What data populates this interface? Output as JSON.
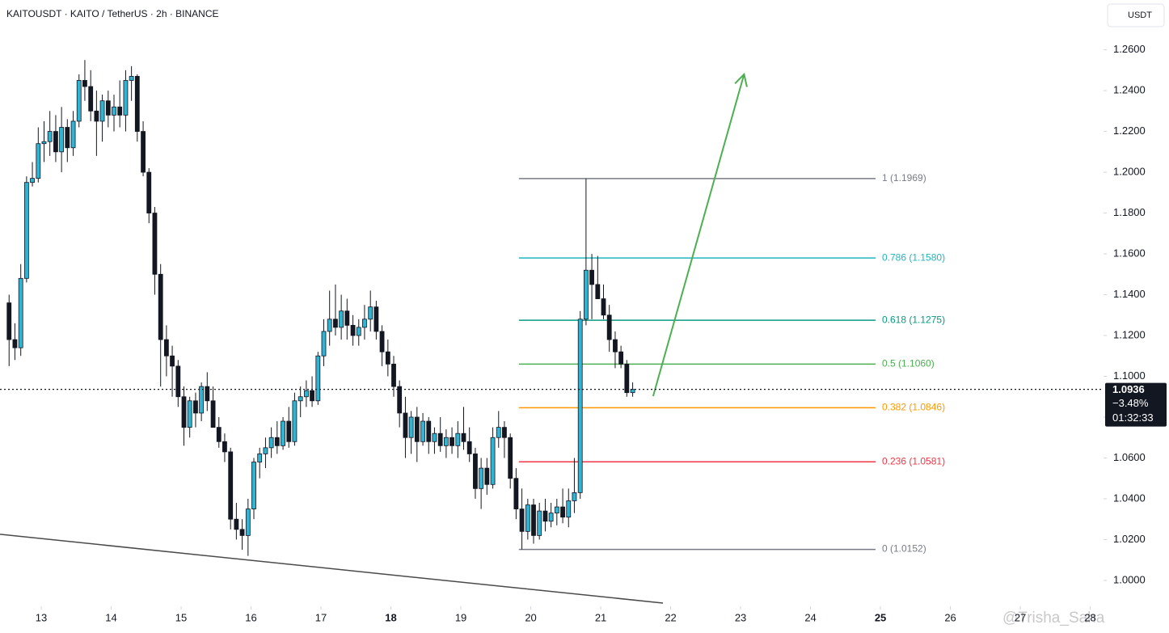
{
  "header": {
    "title": "KAITOUSDT · KAITO / TetherUS · 2h · BINANCE",
    "currency": "USDT"
  },
  "watermark": "@Trisha_Saha",
  "chart_data": {
    "type": "candlestick",
    "xlim": [
      12.41,
      28.19
    ],
    "ylim": [
      0.9873,
      1.2844
    ],
    "xticks": [
      13,
      14,
      15,
      16,
      17,
      18,
      19,
      20,
      21,
      22,
      23,
      24,
      25,
      26,
      27,
      28
    ],
    "bold_xticks": [
      18,
      25
    ],
    "yticks": [
      {
        "value": 1.0,
        "label": "1.0000"
      },
      {
        "value": 1.02,
        "label": "1.0200"
      },
      {
        "value": 1.04,
        "label": "1.0400"
      },
      {
        "value": 1.06,
        "label": "1.0600"
      },
      {
        "value": 1.08,
        "label": "1.0800"
      },
      {
        "value": 1.1,
        "label": "1.1000"
      },
      {
        "value": 1.12,
        "label": "1.1200"
      },
      {
        "value": 1.14,
        "label": "1.1400"
      },
      {
        "value": 1.16,
        "label": "1.1600"
      },
      {
        "value": 1.18,
        "label": "1.1800"
      },
      {
        "value": 1.2,
        "label": "1.2000"
      },
      {
        "value": 1.22,
        "label": "1.2200"
      },
      {
        "value": 1.24,
        "label": "1.2400"
      },
      {
        "value": 1.26,
        "label": "1.2600"
      }
    ],
    "up_color": "#2fb5d3",
    "down_color": "#131722",
    "x": [
      12.54,
      12.623,
      12.707,
      12.79,
      12.873,
      12.957,
      13.04,
      13.123,
      13.207,
      13.29,
      13.373,
      13.457,
      13.54,
      13.623,
      13.707,
      13.79,
      13.873,
      13.957,
      14.04,
      14.123,
      14.207,
      14.29,
      14.373,
      14.457,
      14.54,
      14.623,
      14.707,
      14.79,
      14.873,
      14.957,
      15.04,
      15.123,
      15.207,
      15.29,
      15.373,
      15.457,
      15.54,
      15.623,
      15.707,
      15.79,
      15.873,
      15.957,
      16.04,
      16.123,
      16.207,
      16.29,
      16.373,
      16.457,
      16.54,
      16.623,
      16.707,
      16.79,
      16.873,
      16.957,
      17.04,
      17.123,
      17.207,
      17.29,
      17.373,
      17.457,
      17.54,
      17.623,
      17.707,
      17.79,
      17.873,
      17.957,
      18.04,
      18.123,
      18.207,
      18.29,
      18.373,
      18.457,
      18.54,
      18.623,
      18.707,
      18.79,
      18.873,
      18.957,
      19.04,
      19.123,
      19.207,
      19.29,
      19.373,
      19.457,
      19.54,
      19.623,
      19.707,
      19.79,
      19.873,
      19.957,
      20.04,
      20.123,
      20.207,
      20.29,
      20.373,
      20.457,
      20.54,
      20.623,
      20.707,
      20.79,
      20.873,
      20.957,
      21.04,
      21.123,
      21.207,
      21.29,
      21.373,
      21.457
    ],
    "open": [
      1.136,
      1.118,
      1.114,
      1.148,
      1.195,
      1.197,
      1.214,
      1.215,
      1.22,
      1.21,
      1.222,
      1.212,
      1.225,
      1.245,
      1.242,
      1.23,
      1.225,
      1.235,
      1.228,
      1.232,
      1.228,
      1.245,
      1.247,
      1.22,
      1.2,
      1.18,
      1.15,
      1.118,
      1.11,
      1.105,
      1.09,
      1.075,
      1.088,
      1.082,
      1.095,
      1.088,
      1.075,
      1.068,
      1.063,
      1.03,
      1.025,
      1.022,
      1.035,
      1.058,
      1.062,
      1.065,
      1.07,
      1.066,
      1.078,
      1.068,
      1.088,
      1.09,
      1.093,
      1.088,
      1.11,
      1.122,
      1.128,
      1.124,
      1.132,
      1.125,
      1.12,
      1.124,
      1.128,
      1.134,
      1.122,
      1.112,
      1.106,
      1.095,
      1.082,
      1.07,
      1.08,
      1.068,
      1.078,
      1.068,
      1.072,
      1.066,
      1.07,
      1.066,
      1.072,
      1.068,
      1.062,
      1.045,
      1.055,
      1.047,
      1.07,
      1.075,
      1.07,
      1.05,
      1.035,
      1.024,
      1.037,
      1.022,
      1.034,
      1.029,
      1.033,
      1.036,
      1.031,
      1.039,
      1.043,
      1.128,
      1.152,
      1.145,
      1.138,
      1.13,
      1.118,
      1.112,
      1.106,
      1.092
    ],
    "high": [
      1.14,
      1.126,
      1.155,
      1.198,
      1.205,
      1.222,
      1.225,
      1.23,
      1.228,
      1.232,
      1.226,
      1.23,
      1.248,
      1.255,
      1.25,
      1.24,
      1.238,
      1.24,
      1.238,
      1.245,
      1.25,
      1.252,
      1.248,
      1.225,
      1.202,
      1.183,
      1.155,
      1.125,
      1.115,
      1.108,
      1.095,
      1.09,
      1.092,
      1.097,
      1.102,
      1.095,
      1.08,
      1.072,
      1.065,
      1.038,
      1.03,
      1.04,
      1.06,
      1.065,
      1.07,
      1.075,
      1.078,
      1.08,
      1.085,
      1.092,
      1.095,
      1.098,
      1.1,
      1.112,
      1.128,
      1.142,
      1.145,
      1.14,
      1.138,
      1.13,
      1.128,
      1.135,
      1.142,
      1.137,
      1.125,
      1.118,
      1.11,
      1.098,
      1.09,
      1.083,
      1.085,
      1.082,
      1.08,
      1.075,
      1.08,
      1.074,
      1.075,
      1.078,
      1.085,
      1.075,
      1.065,
      1.06,
      1.06,
      1.075,
      1.083,
      1.078,
      1.072,
      1.055,
      1.045,
      1.04,
      1.04,
      1.038,
      1.04,
      1.038,
      1.04,
      1.045,
      1.045,
      1.06,
      1.132,
      1.1969,
      1.16,
      1.159,
      1.145,
      1.135,
      1.122,
      1.115,
      1.108,
      1.097
    ],
    "low": [
      1.105,
      1.108,
      1.11,
      1.146,
      1.193,
      1.195,
      1.205,
      1.208,
      1.205,
      1.2,
      1.205,
      1.208,
      1.222,
      1.235,
      1.225,
      1.208,
      1.215,
      1.222,
      1.22,
      1.222,
      1.22,
      1.235,
      1.215,
      1.198,
      1.175,
      1.14,
      1.095,
      1.1,
      1.09,
      1.085,
      1.066,
      1.07,
      1.075,
      1.078,
      1.083,
      1.075,
      1.065,
      1.058,
      1.025,
      1.02,
      1.015,
      1.012,
      1.03,
      1.05,
      1.055,
      1.06,
      1.062,
      1.064,
      1.065,
      1.066,
      1.08,
      1.085,
      1.085,
      1.086,
      1.105,
      1.115,
      1.12,
      1.118,
      1.118,
      1.115,
      1.115,
      1.118,
      1.122,
      1.118,
      1.105,
      1.1,
      1.09,
      1.075,
      1.06,
      1.062,
      1.058,
      1.066,
      1.062,
      1.062,
      1.063,
      1.06,
      1.062,
      1.06,
      1.064,
      1.058,
      1.04,
      1.035,
      1.042,
      1.045,
      1.065,
      1.06,
      1.045,
      1.03,
      1.0152,
      1.02,
      1.018,
      1.02,
      1.024,
      1.026,
      1.027,
      1.028,
      1.026,
      1.033,
      1.04,
      1.125,
      1.128,
      1.138,
      1.128,
      1.112,
      1.104,
      1.104,
      1.09,
      1.09
    ],
    "close": [
      1.118,
      1.114,
      1.148,
      1.195,
      1.197,
      1.214,
      1.215,
      1.22,
      1.21,
      1.222,
      1.212,
      1.225,
      1.245,
      1.242,
      1.23,
      1.225,
      1.235,
      1.228,
      1.232,
      1.228,
      1.245,
      1.247,
      1.22,
      1.2,
      1.18,
      1.15,
      1.118,
      1.11,
      1.105,
      1.09,
      1.075,
      1.088,
      1.082,
      1.095,
      1.088,
      1.075,
      1.068,
      1.063,
      1.03,
      1.025,
      1.022,
      1.035,
      1.058,
      1.062,
      1.065,
      1.07,
      1.066,
      1.078,
      1.068,
      1.088,
      1.09,
      1.093,
      1.088,
      1.11,
      1.122,
      1.128,
      1.124,
      1.132,
      1.125,
      1.12,
      1.124,
      1.128,
      1.134,
      1.122,
      1.112,
      1.106,
      1.095,
      1.082,
      1.07,
      1.08,
      1.068,
      1.078,
      1.068,
      1.072,
      1.066,
      1.07,
      1.066,
      1.072,
      1.068,
      1.062,
      1.045,
      1.055,
      1.047,
      1.07,
      1.075,
      1.07,
      1.05,
      1.035,
      1.024,
      1.037,
      1.022,
      1.034,
      1.029,
      1.033,
      1.036,
      1.031,
      1.039,
      1.043,
      1.128,
      1.152,
      1.145,
      1.138,
      1.13,
      1.118,
      1.112,
      1.106,
      1.092,
      1.0936
    ],
    "fib": {
      "x_range": [
        19.83,
        24.93
      ],
      "levels": [
        {
          "price": 1.1969,
          "label": "1 (1.1969)",
          "color": "#787b86"
        },
        {
          "price": 1.158,
          "label": "0.786 (1.1580)",
          "color": "#22b5bf"
        },
        {
          "price": 1.1275,
          "label": "0.618 (1.1275)",
          "color": "#089981"
        },
        {
          "price": 1.106,
          "label": "0.5 (1.1060)",
          "color": "#4caf50"
        },
        {
          "price": 1.0846,
          "label": "0.382 (1.0846)",
          "color": "#ff9800"
        },
        {
          "price": 1.0581,
          "label": "0.236 (1.0581)",
          "color": "#f23645"
        },
        {
          "price": 1.0152,
          "label": "0 (1.0152)",
          "color": "#787b86"
        }
      ]
    },
    "trendline": {
      "x": [
        12.41,
        21.89
      ],
      "y": [
        1.0226,
        0.9889
      ],
      "color": "#4a4a4a"
    },
    "arrow": {
      "x": [
        21.75,
        23.05
      ],
      "y": [
        1.0903,
        1.248
      ],
      "color": "#4caf50"
    },
    "last_price": {
      "value": 1.0936,
      "change": "−3.48%",
      "countdown": "01:32:33"
    }
  }
}
